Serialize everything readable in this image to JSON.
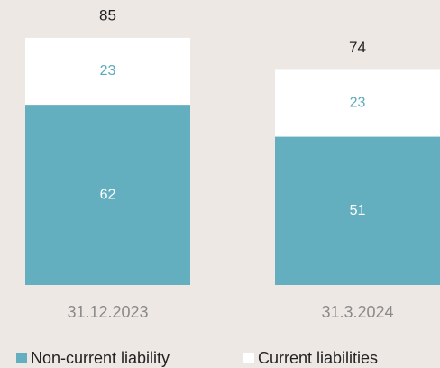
{
  "chart_data": {
    "type": "stacked_bar",
    "categories": [
      "31.12.2023",
      "31.3.2024"
    ],
    "series": [
      {
        "name": "Non-current liability",
        "color": "#64afbf",
        "values": [
          62,
          51
        ]
      },
      {
        "name": "Current liabilities",
        "color": "#ffffff",
        "values": [
          23,
          23
        ]
      }
    ],
    "totals": [
      85,
      74
    ],
    "ylim": [
      0,
      98
    ]
  }
}
